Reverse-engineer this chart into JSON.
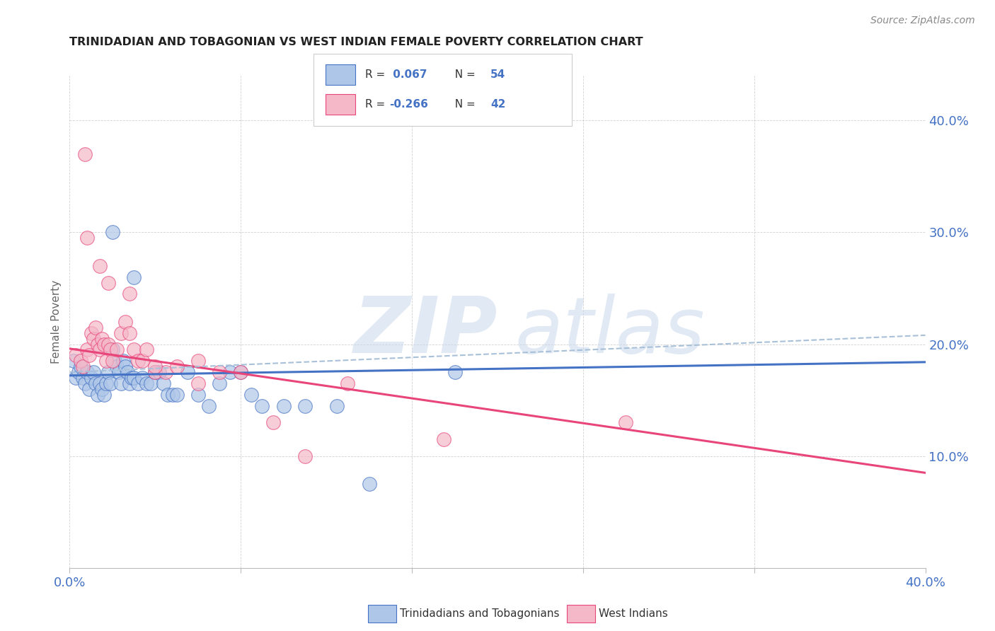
{
  "title": "TRINIDADIAN AND TOBAGONIAN VS WEST INDIAN FEMALE POVERTY CORRELATION CHART",
  "source": "Source: ZipAtlas.com",
  "ylabel": "Female Poverty",
  "xlim": [
    0.0,
    0.4
  ],
  "ylim": [
    0.0,
    0.44
  ],
  "xtick_positions": [
    0.0,
    0.08,
    0.16,
    0.24,
    0.32,
    0.4
  ],
  "xtick_labels_show": [
    "0.0%",
    "",
    "",
    "",
    "",
    "40.0%"
  ],
  "ytick_positions": [
    0.1,
    0.2,
    0.3,
    0.4
  ],
  "ytick_labels": [
    "10.0%",
    "20.0%",
    "30.0%",
    "40.0%"
  ],
  "background_color": "#ffffff",
  "legend_label1": "Trinidadians and Tobagonians",
  "legend_label2": "West Indians",
  "color_blue": "#aec6e8",
  "color_pink": "#f4b8c8",
  "line_blue": "#4472c4",
  "line_pink": "#e8457a",
  "line_dashed_color": "#a8c0d8",
  "scatter_blue_x": [
    0.002,
    0.003,
    0.004,
    0.005,
    0.006,
    0.007,
    0.008,
    0.009,
    0.01,
    0.011,
    0.012,
    0.013,
    0.014,
    0.015,
    0.016,
    0.017,
    0.018,
    0.019,
    0.02,
    0.021,
    0.022,
    0.023,
    0.024,
    0.025,
    0.026,
    0.027,
    0.028,
    0.029,
    0.03,
    0.032,
    0.034,
    0.036,
    0.038,
    0.04,
    0.042,
    0.044,
    0.046,
    0.048,
    0.05,
    0.055,
    0.06,
    0.065,
    0.07,
    0.075,
    0.08,
    0.085,
    0.09,
    0.1,
    0.11,
    0.125,
    0.14,
    0.18,
    0.02,
    0.03
  ],
  "scatter_blue_y": [
    0.185,
    0.17,
    0.175,
    0.18,
    0.17,
    0.165,
    0.175,
    0.16,
    0.17,
    0.175,
    0.165,
    0.155,
    0.165,
    0.16,
    0.155,
    0.165,
    0.175,
    0.165,
    0.195,
    0.185,
    0.18,
    0.175,
    0.165,
    0.185,
    0.18,
    0.175,
    0.165,
    0.17,
    0.17,
    0.165,
    0.17,
    0.165,
    0.165,
    0.175,
    0.175,
    0.165,
    0.155,
    0.155,
    0.155,
    0.175,
    0.155,
    0.145,
    0.165,
    0.175,
    0.175,
    0.155,
    0.145,
    0.145,
    0.145,
    0.145,
    0.075,
    0.175,
    0.3,
    0.26
  ],
  "scatter_pink_x": [
    0.003,
    0.005,
    0.006,
    0.007,
    0.008,
    0.009,
    0.01,
    0.011,
    0.012,
    0.013,
    0.014,
    0.015,
    0.016,
    0.017,
    0.018,
    0.019,
    0.02,
    0.022,
    0.024,
    0.026,
    0.028,
    0.03,
    0.032,
    0.034,
    0.036,
    0.04,
    0.045,
    0.05,
    0.06,
    0.07,
    0.08,
    0.095,
    0.11,
    0.13,
    0.175,
    0.26,
    0.008,
    0.014,
    0.018,
    0.028,
    0.04,
    0.06
  ],
  "scatter_pink_y": [
    0.19,
    0.185,
    0.18,
    0.37,
    0.195,
    0.19,
    0.21,
    0.205,
    0.215,
    0.2,
    0.195,
    0.205,
    0.2,
    0.185,
    0.2,
    0.195,
    0.185,
    0.195,
    0.21,
    0.22,
    0.21,
    0.195,
    0.185,
    0.185,
    0.195,
    0.175,
    0.175,
    0.18,
    0.165,
    0.175,
    0.175,
    0.13,
    0.1,
    0.165,
    0.115,
    0.13,
    0.295,
    0.27,
    0.255,
    0.245,
    0.18,
    0.185
  ],
  "blue_line_x": [
    0.0,
    0.4
  ],
  "blue_line_y": [
    0.172,
    0.184
  ],
  "pink_line_x": [
    0.0,
    0.4
  ],
  "pink_line_y": [
    0.196,
    0.085
  ],
  "dashed_line_x": [
    0.0,
    0.4
  ],
  "dashed_line_y": [
    0.175,
    0.208
  ]
}
